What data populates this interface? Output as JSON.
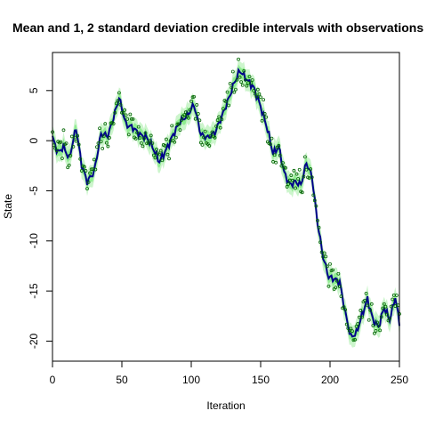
{
  "chart_data": {
    "type": "line",
    "title": "Mean and 1, 2 standard deviation credible intervals with observations",
    "xlabel": "Iteration",
    "ylabel": "State",
    "xlim": [
      0,
      250
    ],
    "ylim": [
      -22,
      8.8
    ],
    "x_ticks": [
      0,
      50,
      100,
      150,
      200,
      250
    ],
    "y_ticks": [
      -20,
      -15,
      -10,
      -5,
      0,
      5
    ],
    "x_tick_labels": [
      "0",
      "50",
      "100",
      "150",
      "200",
      "250"
    ],
    "y_tick_labels": [
      "-20",
      "-15",
      "-10",
      "-5",
      "0",
      "5"
    ],
    "grid": false,
    "legend": "none",
    "colors": {
      "mean_line": "#00008b",
      "band_1sd": "#90ee90",
      "band_2sd": "#ccf5cc",
      "observation_points": "#006400"
    },
    "band_widths": {
      "sd1": 0.55,
      "sd2": 1.1
    },
    "mean_knots": {
      "x": [
        0,
        4,
        8,
        12,
        17,
        21,
        25,
        30,
        35,
        40,
        44,
        48,
        53,
        58,
        63,
        68,
        72,
        77,
        82,
        87,
        92,
        97,
        102,
        107,
        112,
        117,
        122,
        127,
        131,
        135,
        140,
        145,
        150,
        155,
        159,
        163,
        167,
        171,
        175,
        179,
        183,
        187,
        191,
        195,
        199,
        203,
        207,
        211,
        215,
        219,
        223,
        227,
        231,
        235,
        239,
        243,
        247,
        250
      ],
      "y": [
        0.3,
        -1.2,
        -0.6,
        -1.8,
        1.3,
        -2.4,
        -4.1,
        -3.1,
        0.7,
        0.5,
        2.3,
        4.3,
        1.6,
        1.3,
        0.6,
        0.3,
        -0.6,
        -2.1,
        -0.9,
        0.6,
        1.9,
        2.5,
        3.6,
        0.6,
        0.3,
        0.8,
        2.4,
        4.2,
        5.8,
        7.0,
        6.1,
        5.3,
        3.4,
        1.1,
        -1.3,
        -0.6,
        -3.2,
        -4.4,
        -4.1,
        -4.4,
        -2.2,
        -3.6,
        -8.2,
        -11.6,
        -13.6,
        -13.8,
        -14.1,
        -17.2,
        -19.6,
        -19.2,
        -17.4,
        -15.8,
        -17.9,
        -18.6,
        -16.6,
        -17.9,
        -15.6,
        -18.2
      ]
    },
    "observation_offsets": [
      0.6,
      -0.8,
      1.1,
      -0.3,
      0.9,
      -1.0,
      0.2,
      -0.5,
      1.3,
      -0.7,
      0.4,
      0.8,
      -1.2,
      0.1,
      -0.4,
      0.7,
      -0.9,
      0.5,
      1.0,
      -0.2,
      -0.6,
      0.3,
      1.2,
      -1.1
    ]
  }
}
